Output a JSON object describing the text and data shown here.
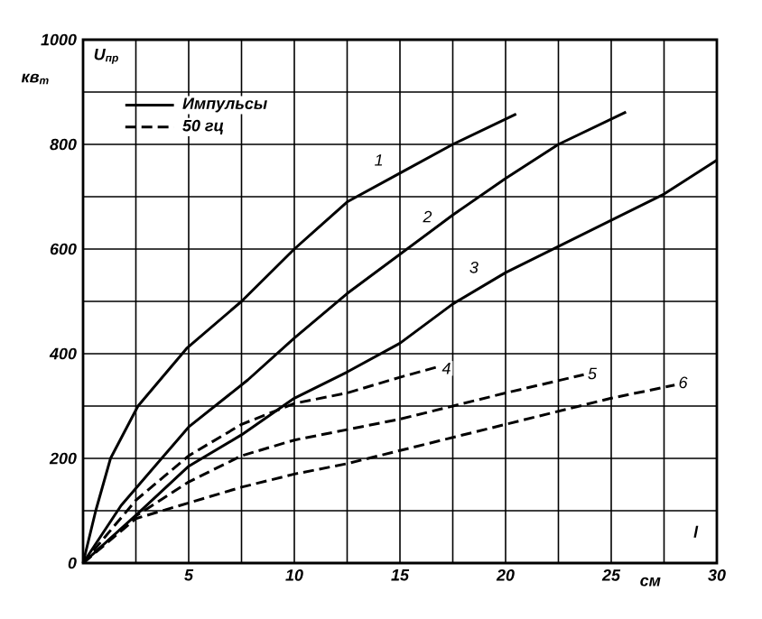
{
  "chart_data": {
    "type": "line",
    "xlabel": "l",
    "ylabel": "U$_{пр}$",
    "xlim": [
      0,
      30
    ],
    "ylim": [
      0,
      1000
    ],
    "xticks": [
      {
        "value": 0,
        "label": null
      },
      {
        "value": 2.5,
        "label": null
      },
      5,
      {
        "value": 7.5,
        "label": null
      },
      10,
      {
        "value": 12.5,
        "label": null
      },
      15,
      {
        "value": 17.5,
        "label": null
      },
      20,
      {
        "value": 22.5,
        "label": null
      },
      25,
      {
        "value": 27.5,
        "label": null
      },
      30
    ],
    "yticks": [
      0,
      {
        "value": 100,
        "label": null
      },
      200,
      {
        "value": 300,
        "label": null
      },
      400,
      {
        "value": 500,
        "label": null
      },
      600,
      {
        "value": 700,
        "label": null
      },
      800,
      {
        "value": 900,
        "label": null
      },
      1000
    ],
    "grid": true,
    "marker": "none",
    "series": [
      {
        "color": "#000000",
        "line_style": "solid",
        "x": [
          0,
          0.6,
          1.3,
          2.6,
          4.9,
          7.5,
          10,
          12.5,
          15,
          17.5,
          20.5
        ],
        "values": [
          0,
          100,
          200,
          300,
          410,
          500,
          600,
          690,
          745,
          800,
          858
        ]
      },
      {
        "color": "#000000",
        "line_style": "solid",
        "x": [
          0,
          1.8,
          5,
          7.8,
          10,
          12.5,
          15,
          17.5,
          20,
          22.5,
          25.7
        ],
        "values": [
          0,
          110,
          260,
          350,
          430,
          515,
          590,
          665,
          735,
          800,
          862
        ]
      },
      {
        "color": "#000000",
        "line_style": "solid",
        "x": [
          0,
          2.6,
          5,
          7.5,
          10,
          12.5,
          15,
          17.5,
          20,
          22.5,
          25,
          27.5,
          30
        ],
        "values": [
          0,
          95,
          185,
          245,
          315,
          365,
          420,
          495,
          555,
          605,
          655,
          705,
          770
        ]
      },
      {
        "color": "#000000",
        "line_style": "dashed",
        "x": [
          0,
          2.5,
          5,
          7.5,
          10,
          12.5,
          15,
          16.8
        ],
        "values": [
          0,
          120,
          205,
          265,
          305,
          325,
          355,
          375
        ]
      },
      {
        "color": "#000000",
        "line_style": "dashed",
        "x": [
          0,
          2.5,
          5,
          7.5,
          10,
          12.5,
          15,
          17.5,
          20,
          23.7
        ],
        "values": [
          0,
          90,
          155,
          205,
          235,
          255,
          275,
          300,
          325,
          360
        ]
      },
      {
        "color": "#000000",
        "line_style": "dashed",
        "x": [
          0,
          2.5,
          5,
          7.5,
          10,
          12.5,
          15,
          17.5,
          20,
          22.5,
          25,
          28
        ],
        "values": [
          0,
          85,
          115,
          145,
          170,
          190,
          215,
          240,
          265,
          290,
          315,
          340
        ]
      }
    ],
    "annotations": [
      "Импульсы",
      "50 гц",
      "кв$_{m}$",
      "см",
      {
        "text": "1",
        "x": 14,
        "y": 770
      },
      {
        "text": "2",
        "x": 16.3,
        "y": 662
      },
      {
        "text": "3",
        "x": 18.5,
        "y": 565
      },
      {
        "text": "4",
        "x": 17.2,
        "y": 372
      },
      {
        "text": "5",
        "x": 24.1,
        "y": 362
      },
      {
        "text": "6",
        "x": 28.4,
        "y": 345
      }
    ]
  }
}
